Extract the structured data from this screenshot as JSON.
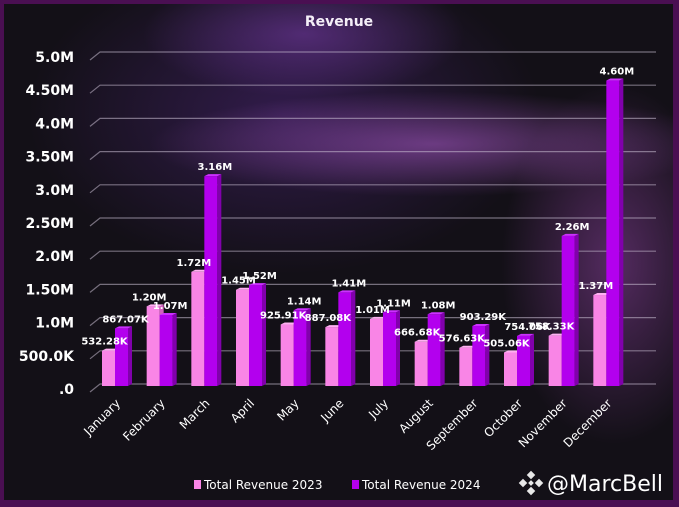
{
  "chart_data": {
    "type": "bar",
    "title": "Revenue",
    "xlabel": "",
    "ylabel": "",
    "ylim": [
      0,
      5000000
    ],
    "yticks": [
      0,
      500000,
      1000000,
      1500000,
      2000000,
      2500000,
      3000000,
      3500000,
      4000000,
      4500000,
      5000000
    ],
    "ytick_labels": [
      ".0",
      "500.0K",
      "1.0M",
      "1.50M",
      "2.0M",
      "2.50M",
      "3.0M",
      "3.50M",
      "4.0M",
      "4.50M",
      "5.0M"
    ],
    "grid": true,
    "legend_position": "bottom",
    "categories": [
      "January",
      "February",
      "March",
      "April",
      "May",
      "June",
      "July",
      "August",
      "September",
      "October",
      "November",
      "December"
    ],
    "series": [
      {
        "name": "Total Revenue 2023",
        "color": "#f985e6",
        "values": [
          532280,
          1200000,
          1720000,
          1450000,
          925910,
          887080,
          1010000,
          666680,
          576630,
          505060,
          758330,
          1370000
        ],
        "labels": [
          "532.28K",
          "1.20M",
          "1.72M",
          "1.45M",
          "925.91K",
          "887.08K",
          "1.01M",
          "666.68K",
          "576.63K",
          "505.06K",
          "758.33K",
          "1.37M"
        ]
      },
      {
        "name": "Total Revenue 2024",
        "color": "#b300ee",
        "values": [
          867070,
          1070000,
          3160000,
          1520000,
          1140000,
          1410000,
          1110000,
          1080000,
          903290,
          754060,
          2260000,
          4600000
        ],
        "labels": [
          "867.07K",
          "1.07M",
          "3.16M",
          "1.52M",
          "1.14M",
          "1.41M",
          "1.11M",
          "1.08M",
          "903.29K",
          "754.06K",
          "2.26M",
          "4.60M"
        ]
      }
    ]
  },
  "watermark": {
    "text": "@MarcBell",
    "icon": "binance-logo-icon"
  }
}
